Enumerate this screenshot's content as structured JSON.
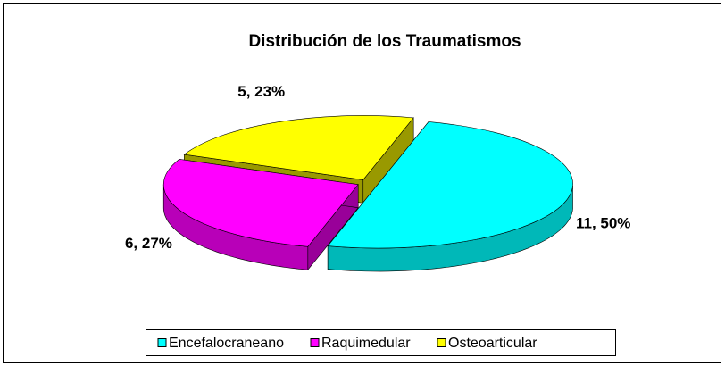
{
  "chart_data": {
    "type": "pie",
    "title": "Distribución de los Traumatismos",
    "categories": [
      "Encefalocraneano",
      "Raquimedular",
      "Osteoarticular"
    ],
    "values": [
      11,
      6,
      5
    ],
    "value_labels": [
      "11, 50%",
      "6, 27%",
      "5, 23%"
    ],
    "colors": [
      "#00ffff",
      "#ff00ff",
      "#ffff00"
    ],
    "legend": "bottom"
  }
}
